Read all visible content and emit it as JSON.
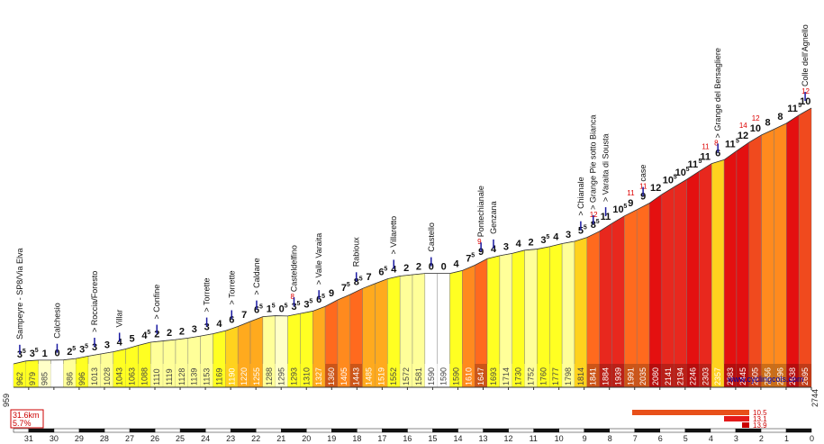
{
  "chart_data": {
    "type": "area",
    "title": "",
    "xlabel": "",
    "ylabel": "",
    "credit": "www.cyclingcols.com",
    "summary": {
      "distance": "31.6km",
      "average": "5.7%"
    },
    "start_altitude": "959",
    "end_altitude": "2744",
    "x_ticks": [
      "31",
      "30",
      "29",
      "28",
      "27",
      "26",
      "25",
      "24",
      "23",
      "22",
      "21",
      "20",
      "19",
      "18",
      "17",
      "16",
      "15",
      "14",
      "13",
      "12",
      "11",
      "10",
      "9",
      "8",
      "7",
      "6",
      "5",
      "4",
      "3",
      "2",
      "1",
      "0"
    ],
    "segments": [
      {
        "alt": "962",
        "g": "3",
        "s": "5",
        "m": ""
      },
      {
        "alt": "979",
        "g": "3",
        "s": "5",
        "m": ""
      },
      {
        "alt": "985",
        "g": "1",
        "s": "",
        "m": ""
      },
      {
        "alt": "",
        "g": "0",
        "s": "",
        "m": ""
      },
      {
        "alt": "986",
        "g": "2",
        "s": "5",
        "m": ""
      },
      {
        "alt": "996",
        "g": "3",
        "s": "5",
        "m": ""
      },
      {
        "alt": "1013",
        "g": "3",
        "s": "",
        "m": ""
      },
      {
        "alt": "1028",
        "g": "3",
        "s": "",
        "m": ""
      },
      {
        "alt": "1043",
        "g": "4",
        "s": "",
        "m": ""
      },
      {
        "alt": "1063",
        "g": "5",
        "s": "",
        "m": ""
      },
      {
        "alt": "1088",
        "g": "4",
        "s": "5",
        "m": ""
      },
      {
        "alt": "1110",
        "g": "2",
        "s": "",
        "m": ""
      },
      {
        "alt": "1119",
        "g": "2",
        "s": "",
        "m": ""
      },
      {
        "alt": "1128",
        "g": "2",
        "s": "",
        "m": ""
      },
      {
        "alt": "1139",
        "g": "3",
        "s": "",
        "m": ""
      },
      {
        "alt": "1153",
        "g": "3",
        "s": "",
        "m": ""
      },
      {
        "alt": "1169",
        "g": "4",
        "s": "",
        "m": ""
      },
      {
        "alt": "1190",
        "g": "6",
        "s": "",
        "m": ""
      },
      {
        "alt": "1220",
        "g": "7",
        "s": "",
        "m": ""
      },
      {
        "alt": "1255",
        "g": "6",
        "s": "5",
        "m": ""
      },
      {
        "alt": "1288",
        "g": "1",
        "s": "5",
        "m": ""
      },
      {
        "alt": "1295",
        "g": "0",
        "s": "5",
        "m": ""
      },
      {
        "alt": "1293",
        "g": "3",
        "s": "5",
        "m": "8"
      },
      {
        "alt": "1310",
        "g": "3",
        "s": "5",
        "m": ""
      },
      {
        "alt": "1327",
        "g": "6",
        "s": "5",
        "m": ""
      },
      {
        "alt": "1360",
        "g": "9",
        "s": "",
        "m": ""
      },
      {
        "alt": "1405",
        "g": "7",
        "s": "5",
        "m": ""
      },
      {
        "alt": "1443",
        "g": "8",
        "s": "5",
        "m": ""
      },
      {
        "alt": "1485",
        "g": "7",
        "s": "",
        "m": ""
      },
      {
        "alt": "1519",
        "g": "6",
        "s": "5",
        "m": ""
      },
      {
        "alt": "1552",
        "g": "4",
        "s": "",
        "m": ""
      },
      {
        "alt": "1572",
        "g": "2",
        "s": "",
        "m": ""
      },
      {
        "alt": "1581",
        "g": "2",
        "s": "",
        "m": ""
      },
      {
        "alt": "1590",
        "g": "0",
        "s": "",
        "m": ""
      },
      {
        "alt": "1590",
        "g": "0",
        "s": "",
        "m": ""
      },
      {
        "alt": "1590",
        "g": "4",
        "s": "",
        "m": ""
      },
      {
        "alt": "1610",
        "g": "7",
        "s": "5",
        "m": ""
      },
      {
        "alt": "1647",
        "g": "9",
        "s": "",
        "m": "9"
      },
      {
        "alt": "1693",
        "g": "4",
        "s": "",
        "m": ""
      },
      {
        "alt": "1714",
        "g": "3",
        "s": "",
        "m": ""
      },
      {
        "alt": "1730",
        "g": "4",
        "s": "",
        "m": ""
      },
      {
        "alt": "1752",
        "g": "2",
        "s": "",
        "m": ""
      },
      {
        "alt": "1760",
        "g": "3",
        "s": "5",
        "m": ""
      },
      {
        "alt": "1777",
        "g": "4",
        "s": "",
        "m": ""
      },
      {
        "alt": "1798",
        "g": "3",
        "s": "",
        "m": ""
      },
      {
        "alt": "1814",
        "g": "5",
        "s": "5",
        "m": ""
      },
      {
        "alt": "1841",
        "g": "8",
        "s": "5",
        "m": "12"
      },
      {
        "alt": "1884",
        "g": "11",
        "s": "",
        "m": ""
      },
      {
        "alt": "1939",
        "g": "10",
        "s": "5",
        "m": ""
      },
      {
        "alt": "1991",
        "g": "9",
        "s": "",
        "m": "11"
      },
      {
        "alt": "2035",
        "g": "9",
        "s": "",
        "m": "11"
      },
      {
        "alt": "2080",
        "g": "12",
        "s": "",
        "m": ""
      },
      {
        "alt": "2141",
        "g": "10",
        "s": "5",
        "m": ""
      },
      {
        "alt": "2194",
        "g": "10",
        "s": "5",
        "m": ""
      },
      {
        "alt": "2246",
        "g": "11",
        "s": "5",
        "m": ""
      },
      {
        "alt": "2303",
        "g": "11",
        "s": "",
        "m": "11"
      },
      {
        "alt": "2357",
        "g": "6",
        "s": "",
        "m": "8"
      },
      {
        "alt": "2383",
        "g": "11",
        "s": "5",
        "m": ""
      },
      {
        "alt": "2445",
        "g": "12",
        "s": "",
        "m": "14"
      },
      {
        "alt": "2505",
        "g": "10",
        "s": "",
        "m": "12"
      },
      {
        "alt": "2556",
        "g": "8",
        "s": "",
        "m": ""
      },
      {
        "alt": "2596",
        "g": "8",
        "s": "",
        "m": ""
      },
      {
        "alt": "2638",
        "g": "11",
        "s": "5",
        "m": ""
      },
      {
        "alt": "2695",
        "g": "10",
        "s": "",
        "m": "12"
      }
    ],
    "places": [
      {
        "name": "Sampeyre - SP8/Via Elva",
        "seg": 0
      },
      {
        "name": "Calchesio",
        "seg": 3
      },
      {
        "name": "> Roccia/Foresto",
        "seg": 6
      },
      {
        "name": "Villar",
        "seg": 8
      },
      {
        "name": "> Confine",
        "seg": 11
      },
      {
        "name": "> Torrette",
        "seg": 15
      },
      {
        "name": "> Torrette",
        "seg": 17
      },
      {
        "name": "> Caldane",
        "seg": 19
      },
      {
        "name": "Casteldelfino",
        "seg": 22
      },
      {
        "name": "> Valle Varaita",
        "seg": 24
      },
      {
        "name": "Rabioux",
        "seg": 27
      },
      {
        "name": "> Villaretto",
        "seg": 30
      },
      {
        "name": "Castello",
        "seg": 33
      },
      {
        "name": "Pontechianale",
        "seg": 37
      },
      {
        "name": "Genzana",
        "seg": 38
      },
      {
        "name": "> Chianale",
        "seg": 45
      },
      {
        "name": "> Grange Pie sotto Bianca",
        "seg": 46
      },
      {
        "name": "> Varaita di Sousta",
        "seg": 47
      },
      {
        "name": "case",
        "seg": 50
      },
      {
        "name": "> Grange del Bersagliere",
        "seg": 56
      },
      {
        "name": "Colle dell'Agnello",
        "seg": 63
      }
    ],
    "legend": [
      {
        "label": "10.5",
        "color": "#e8501a"
      },
      {
        "label": "13.1",
        "color": "#e41a1a"
      },
      {
        "label": "13.9",
        "color": "#cc0000"
      }
    ],
    "colors": {
      "flat": "#ffffff",
      "g1": "#ffffc8",
      "g2": "#ffff99",
      "g4": "#ffff22",
      "g6": "#ffd21e",
      "g7": "#ffaa1e",
      "g8": "#ff8a1e",
      "g9": "#ff6a1e",
      "g10": "#f04a1e",
      "g11": "#e8281e",
      "g12": "#e41010"
    }
  }
}
